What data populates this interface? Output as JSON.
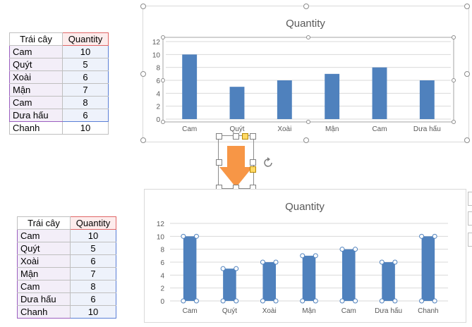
{
  "top_table": {
    "headers": [
      "Trái cây",
      "Quantity"
    ],
    "rows": [
      {
        "name": "Cam",
        "qty": "10"
      },
      {
        "name": "Quýt",
        "qty": "5"
      },
      {
        "name": "Xoài",
        "qty": "6"
      },
      {
        "name": "Mận",
        "qty": "7"
      },
      {
        "name": "Cam",
        "qty": "8"
      },
      {
        "name": "Dưa hấu",
        "qty": "6"
      },
      {
        "name": "Chanh",
        "qty": "10"
      }
    ]
  },
  "bottom_table": {
    "headers": [
      "Trái cây",
      "Quantity"
    ],
    "rows": [
      {
        "name": "Cam",
        "qty": "10"
      },
      {
        "name": "Quýt",
        "qty": "5"
      },
      {
        "name": "Xoài",
        "qty": "6"
      },
      {
        "name": "Mận",
        "qty": "7"
      },
      {
        "name": "Cam",
        "qty": "8"
      },
      {
        "name": "Dưa hấu",
        "qty": "6"
      },
      {
        "name": "Chanh",
        "qty": "10"
      }
    ]
  },
  "colors": {
    "bar": "#4f81bd",
    "arrow": "#f79646",
    "header_range": "#e06666",
    "value_range": "#5b7fd6",
    "category_range": "#9b5fc0"
  },
  "chart_data": [
    {
      "type": "bar",
      "title": "Quantity",
      "categories": [
        "Cam",
        "Quýt",
        "Xoài",
        "Mận",
        "Cam",
        "Dưa hấu"
      ],
      "values": [
        10,
        5,
        6,
        7,
        8,
        6
      ],
      "ylim": [
        0,
        12
      ],
      "yticks": [
        0,
        2,
        4,
        6,
        8,
        10,
        12
      ],
      "grid": true,
      "legend": "none"
    },
    {
      "type": "bar",
      "title": "Quantity",
      "categories": [
        "Cam",
        "Quýt",
        "Xoài",
        "Mận",
        "Cam",
        "Dưa hấu",
        "Chanh"
      ],
      "values": [
        10,
        5,
        6,
        7,
        8,
        6,
        10
      ],
      "ylim": [
        0,
        12
      ],
      "yticks": [
        0,
        2,
        4,
        6,
        8,
        10,
        12
      ],
      "grid": true,
      "legend": "none",
      "selected": true
    }
  ]
}
